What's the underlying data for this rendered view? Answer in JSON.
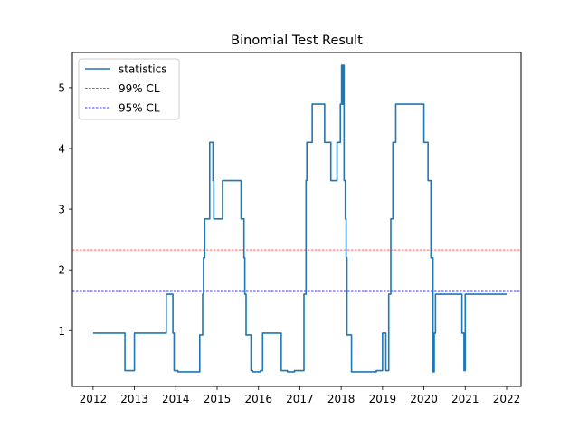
{
  "chart_data": {
    "type": "line",
    "title": "Binomial Test Result",
    "xlabel": "",
    "ylabel": "",
    "xlim": [
      2011.5,
      2022.35
    ],
    "ylim": [
      0.08,
      5.58
    ],
    "xticks": [
      2012,
      2013,
      2014,
      2015,
      2016,
      2017,
      2018,
      2019,
      2020,
      2021,
      2022
    ],
    "xtick_labels": [
      "2012",
      "2013",
      "2014",
      "2015",
      "2016",
      "2017",
      "2018",
      "2019",
      "2020",
      "2021",
      "2022"
    ],
    "yticks": [
      1,
      2,
      3,
      4,
      5
    ],
    "ytick_labels": [
      "1",
      "2",
      "3",
      "4",
      "5"
    ],
    "grid": false,
    "legend_position": "top-left",
    "series": [
      {
        "name": "statistics",
        "color": "#1f77b4",
        "points": [
          [
            2012.0,
            0.96
          ],
          [
            2012.77,
            0.96
          ],
          [
            2012.77,
            0.34
          ],
          [
            2013.0,
            0.34
          ],
          [
            2013.0,
            0.96
          ],
          [
            2013.77,
            0.96
          ],
          [
            2013.77,
            1.6
          ],
          [
            2013.93,
            1.6
          ],
          [
            2013.93,
            0.96
          ],
          [
            2013.96,
            0.96
          ],
          [
            2013.96,
            0.34
          ],
          [
            2014.05,
            0.34
          ],
          [
            2014.05,
            0.32
          ],
          [
            2014.58,
            0.32
          ],
          [
            2014.58,
            0.93
          ],
          [
            2014.65,
            0.93
          ],
          [
            2014.65,
            1.6
          ],
          [
            2014.67,
            1.6
          ],
          [
            2014.67,
            2.2
          ],
          [
            2014.7,
            2.2
          ],
          [
            2014.7,
            2.84
          ],
          [
            2014.82,
            2.84
          ],
          [
            2014.82,
            4.1
          ],
          [
            2014.9,
            4.1
          ],
          [
            2014.9,
            3.47
          ],
          [
            2014.92,
            3.47
          ],
          [
            2014.92,
            2.84
          ],
          [
            2015.13,
            2.84
          ],
          [
            2015.13,
            3.47
          ],
          [
            2015.58,
            3.47
          ],
          [
            2015.58,
            2.84
          ],
          [
            2015.65,
            2.84
          ],
          [
            2015.65,
            2.2
          ],
          [
            2015.67,
            2.2
          ],
          [
            2015.67,
            1.6
          ],
          [
            2015.7,
            1.6
          ],
          [
            2015.7,
            0.93
          ],
          [
            2015.82,
            0.93
          ],
          [
            2015.82,
            0.34
          ],
          [
            2015.86,
            0.34
          ],
          [
            2015.86,
            0.32
          ],
          [
            2016.05,
            0.32
          ],
          [
            2016.05,
            0.34
          ],
          [
            2016.1,
            0.34
          ],
          [
            2016.1,
            0.96
          ],
          [
            2016.55,
            0.96
          ],
          [
            2016.55,
            0.34
          ],
          [
            2016.7,
            0.34
          ],
          [
            2016.7,
            0.32
          ],
          [
            2016.87,
            0.32
          ],
          [
            2016.87,
            0.34
          ],
          [
            2017.1,
            0.34
          ],
          [
            2017.1,
            1.6
          ],
          [
            2017.15,
            1.6
          ],
          [
            2017.15,
            3.47
          ],
          [
            2017.17,
            3.47
          ],
          [
            2017.17,
            4.1
          ],
          [
            2017.3,
            4.1
          ],
          [
            2017.3,
            4.73
          ],
          [
            2017.6,
            4.73
          ],
          [
            2017.6,
            4.1
          ],
          [
            2017.75,
            4.1
          ],
          [
            2017.75,
            3.47
          ],
          [
            2017.9,
            3.47
          ],
          [
            2017.9,
            4.1
          ],
          [
            2017.98,
            4.1
          ],
          [
            2017.98,
            4.73
          ],
          [
            2018.01,
            4.73
          ],
          [
            2018.01,
            5.37
          ],
          [
            2018.03,
            5.37
          ],
          [
            2018.03,
            4.73
          ],
          [
            2018.05,
            4.73
          ],
          [
            2018.05,
            5.37
          ],
          [
            2018.07,
            5.37
          ],
          [
            2018.07,
            3.47
          ],
          [
            2018.1,
            3.47
          ],
          [
            2018.1,
            2.84
          ],
          [
            2018.12,
            2.84
          ],
          [
            2018.12,
            2.2
          ],
          [
            2018.14,
            2.2
          ],
          [
            2018.14,
            0.93
          ],
          [
            2018.25,
            0.93
          ],
          [
            2018.25,
            0.32
          ],
          [
            2018.85,
            0.32
          ],
          [
            2018.85,
            0.34
          ],
          [
            2019.0,
            0.34
          ],
          [
            2019.0,
            0.96
          ],
          [
            2019.08,
            0.96
          ],
          [
            2019.08,
            0.34
          ],
          [
            2019.15,
            0.34
          ],
          [
            2019.15,
            1.6
          ],
          [
            2019.2,
            1.6
          ],
          [
            2019.2,
            2.84
          ],
          [
            2019.25,
            2.84
          ],
          [
            2019.25,
            4.1
          ],
          [
            2019.32,
            4.1
          ],
          [
            2019.32,
            4.73
          ],
          [
            2020.0,
            4.73
          ],
          [
            2020.0,
            4.1
          ],
          [
            2020.1,
            4.1
          ],
          [
            2020.1,
            3.47
          ],
          [
            2020.17,
            3.47
          ],
          [
            2020.17,
            2.2
          ],
          [
            2020.22,
            2.2
          ],
          [
            2020.22,
            0.32
          ],
          [
            2020.25,
            0.32
          ],
          [
            2020.25,
            0.96
          ],
          [
            2020.28,
            0.96
          ],
          [
            2020.28,
            1.6
          ],
          [
            2020.92,
            1.6
          ],
          [
            2020.92,
            0.96
          ],
          [
            2020.97,
            0.96
          ],
          [
            2020.97,
            0.34
          ],
          [
            2021.0,
            0.34
          ],
          [
            2021.0,
            1.6
          ],
          [
            2022.0,
            1.6
          ]
        ]
      }
    ],
    "reference_lines": [
      {
        "name": "99% CL",
        "y": 2.33,
        "color": "#ff0000",
        "style": "dashed"
      },
      {
        "name": "95% CL",
        "y": 1.645,
        "color": "#0000ff",
        "style": "dashed"
      }
    ],
    "legend": [
      "statistics",
      "99% CL",
      "95% CL"
    ]
  }
}
